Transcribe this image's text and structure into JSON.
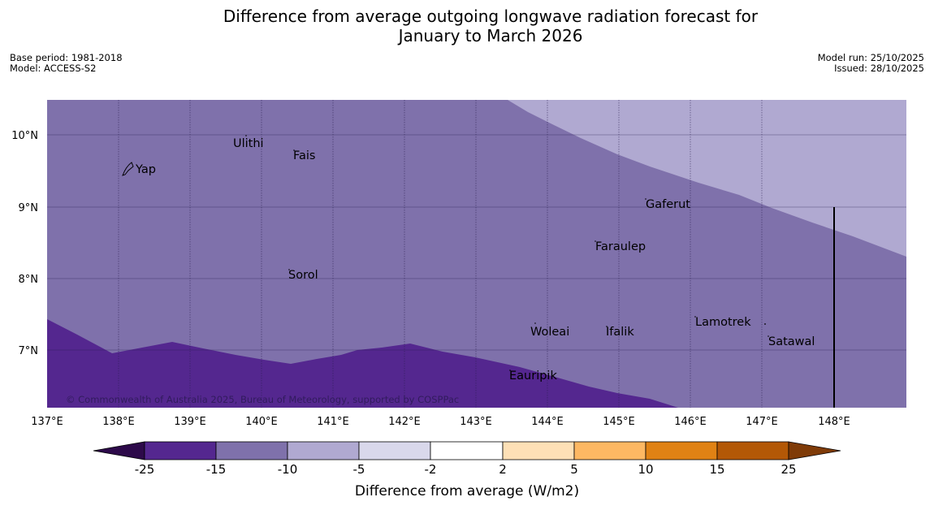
{
  "title": {
    "line1": "Difference from average outgoing longwave radiation forecast for",
    "line2": "January to March 2026"
  },
  "meta": {
    "base_period": "Base period: 1981-2018",
    "model": "Model: ACCESS-S2",
    "model_run": "Model run: 25/10/2025",
    "issued": "Issued: 28/10/2025"
  },
  "map": {
    "lon_labels": [
      "137°E",
      "138°E",
      "139°E",
      "140°E",
      "141°E",
      "142°E",
      "143°E",
      "144°E",
      "145°E",
      "146°E",
      "147°E",
      "148°E"
    ],
    "lat_labels": [
      "10°N",
      "9°N",
      "8°N",
      "7°N"
    ],
    "places": [
      "Ulithi",
      "Fais",
      "Yap",
      "Gaferut",
      "Faraulep",
      "Sorol",
      "Lamotrek",
      "Woleai",
      "Ifalik",
      "Satawal",
      "Eauripik"
    ],
    "copyright": "© Commonwealth of Australia 2025, Bureau of Meteorology, supported by COSPPac",
    "colors": {
      "band_minus25_minus15": "#54278f",
      "band_minus15_minus10": "#7f71ab",
      "band_minus10_minus5": "#b0a9d1"
    }
  },
  "colorbar": {
    "label": "Difference from average (W/m2)",
    "ticks": [
      "-25",
      "-15",
      "-10",
      "-5",
      "-2",
      "2",
      "5",
      "10",
      "15",
      "25"
    ],
    "colors": [
      "#2d0a4a",
      "#54278f",
      "#7f71ab",
      "#b0a9d1",
      "#d9d8eb",
      "#ffffff",
      "#fee0b6",
      "#fdb863",
      "#e08214",
      "#b35806",
      "#7f3b08"
    ]
  }
}
